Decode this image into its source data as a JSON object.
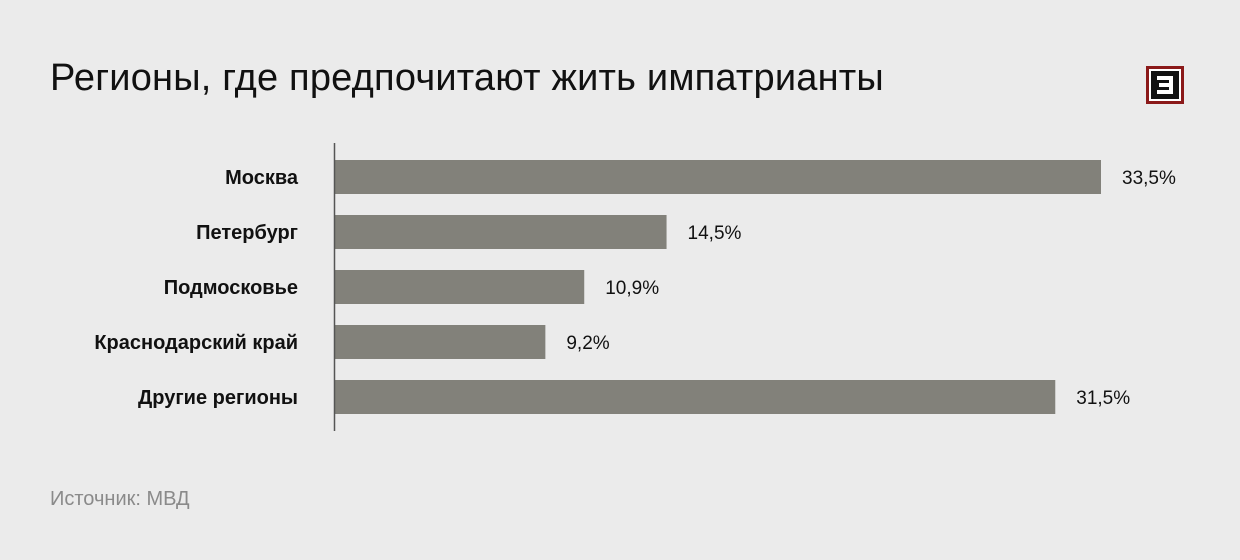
{
  "title": "Регионы, где предпочитают жить импатрианты",
  "source": "Источник: МВД",
  "colors": {
    "bar": "#82817a",
    "axis": "#555555",
    "logo": "#8b1a1a",
    "background": "#ebebeb"
  },
  "logo_icon": "e-mirrored-icon",
  "chart_data": {
    "type": "bar",
    "orientation": "horizontal",
    "categories": [
      "Москва",
      "Петербург",
      "Подмосковье",
      "Краснодарский край",
      "Другие регионы"
    ],
    "values": [
      33.5,
      14.5,
      10.9,
      9.2,
      31.5
    ],
    "value_labels": [
      "33,5%",
      "14,5%",
      "10,9%",
      "9,2%",
      "31,5%"
    ],
    "unit": "%",
    "xlim": [
      0,
      35
    ],
    "grid": false,
    "legend": "none"
  }
}
